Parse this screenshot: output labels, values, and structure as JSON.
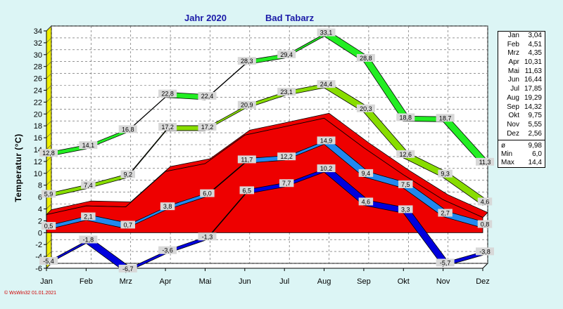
{
  "header": {
    "year_label": "Jahr  2020",
    "place_label": "Bad Tabarz"
  },
  "footer": {
    "text": "© WsWin32  01.01.2021"
  },
  "colors": {
    "abs_max": "#22ee22",
    "avg_max": "#88dd00",
    "mean": "#ee0000",
    "avg_min": "#2288ee",
    "abs_min": "#0000dd",
    "background": "#dcf5f5"
  },
  "legend": {
    "months": [
      {
        "m": "Jan",
        "v": "3,04"
      },
      {
        "m": "Feb",
        "v": "4,51"
      },
      {
        "m": "Mrz",
        "v": "4,35"
      },
      {
        "m": "Apr",
        "v": "10,31"
      },
      {
        "m": "Mai",
        "v": "11,63"
      },
      {
        "m": "Jun",
        "v": "16,44"
      },
      {
        "m": "Jul",
        "v": "17,85"
      },
      {
        "m": "Aug",
        "v": "19,29"
      },
      {
        "m": "Sep",
        "v": "14,32"
      },
      {
        "m": "Okt",
        "v": "9,75"
      },
      {
        "m": "Nov",
        "v": "5,55"
      },
      {
        "m": "Dez",
        "v": "2,56"
      }
    ],
    "stats": [
      {
        "m": "ø",
        "v": "9,98",
        "color": "#000000"
      },
      {
        "m": "Min",
        "v": "6,0",
        "color": "#000000"
      },
      {
        "m": "Max",
        "v": "14,4",
        "color": "#000000"
      }
    ]
  },
  "chart_data": {
    "type": "line",
    "title": "Jahr  2020   Bad Tabarz",
    "ylabel": "Temperatur (°C)",
    "categories": [
      "Jan",
      "Feb",
      "Mrz",
      "Apr",
      "Mai",
      "Jun",
      "Jul",
      "Aug",
      "Sep",
      "Okt",
      "Nov",
      "Dez"
    ],
    "ylim": [
      -6,
      34
    ],
    "yticks": [
      -6,
      -4,
      -2,
      0,
      2,
      4,
      6,
      8,
      10,
      12,
      14,
      16,
      18,
      20,
      22,
      24,
      26,
      28,
      30,
      32,
      34
    ],
    "ytick_labels": [
      "-6",
      "-4",
      "-2",
      "0",
      "2",
      "4",
      "6",
      "8",
      "10",
      "12",
      "14",
      "16",
      "18",
      "20",
      "22",
      "24",
      "26",
      "28",
      "30",
      "32",
      "34"
    ],
    "grid": true,
    "series": [
      {
        "key": "abs_max",
        "values": [
          12.8,
          14.1,
          16.8,
          22.8,
          22.4,
          28.3,
          29.4,
          33.1,
          28.8,
          18.8,
          18.7,
          11.3
        ],
        "labels": [
          "12,8",
          "14,1",
          "16,8",
          "22,8",
          "22,4",
          "28,3",
          "29,4",
          "33,1",
          "28,8",
          "18,8",
          "18,7",
          "11,3"
        ]
      },
      {
        "key": "avg_max",
        "values": [
          5.9,
          7.4,
          9.2,
          17.2,
          17.2,
          20.9,
          23.1,
          24.4,
          20.3,
          12.6,
          9.3,
          4.6
        ],
        "labels": [
          "5,9",
          "7,4",
          "9,2",
          "17,2",
          "17,2",
          "20,9",
          "23,1",
          "24,4",
          "20,3",
          "12,6",
          "9,3",
          "4,6"
        ]
      },
      {
        "key": "mean",
        "values": [
          3.04,
          4.51,
          4.35,
          10.31,
          11.63,
          16.44,
          17.85,
          19.29,
          14.32,
          9.75,
          5.55,
          2.56
        ]
      },
      {
        "key": "avg_min",
        "values": [
          0.5,
          2.1,
          0.7,
          3.8,
          6.0,
          11.7,
          12.2,
          14.9,
          9.4,
          7.5,
          2.7,
          0.8
        ],
        "labels": [
          "0,5",
          "2,1",
          "0,7",
          "3,8",
          "6,0",
          "11,7",
          "12,2",
          "14,9",
          "9,4",
          "7,5",
          "2,7",
          "0,8"
        ]
      },
      {
        "key": "abs_min",
        "values": [
          -5.4,
          -1.8,
          -6.7,
          -3.6,
          -1.3,
          6.5,
          7.7,
          10.2,
          4.6,
          3.3,
          -5.7,
          -3.8
        ],
        "labels": [
          "-5,4",
          "-1,8",
          "-6,7",
          "-3,6",
          "-1,3",
          "6,5",
          "7,7",
          "10,2",
          "4,6",
          "3,3",
          "-5,7",
          "-3,8"
        ]
      }
    ]
  }
}
